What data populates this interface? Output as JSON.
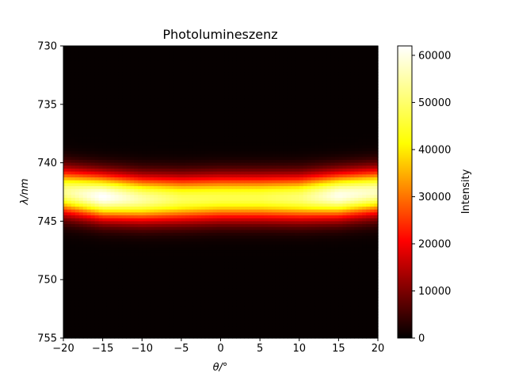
{
  "chart_data": {
    "type": "heatmap",
    "title": "Photolumineszenz",
    "xlabel": "θ/°",
    "ylabel": "λ/nm",
    "colorbar_label": "Intensity",
    "colormap": "hot",
    "x_range": [
      -20,
      20
    ],
    "y_range": [
      730,
      755
    ],
    "y_inverted": true,
    "x_ticks": [
      "−20",
      "−15",
      "−10",
      "−5",
      "0",
      "5",
      "10",
      "15",
      "20"
    ],
    "x_tick_values": [
      -20,
      -15,
      -10,
      -5,
      0,
      5,
      10,
      15,
      20
    ],
    "y_ticks": [
      "730",
      "735",
      "740",
      "745",
      "750",
      "755"
    ],
    "y_tick_values": [
      730,
      735,
      740,
      745,
      750,
      755
    ],
    "colorbar_ticks": [
      "0",
      "10000",
      "20000",
      "30000",
      "40000",
      "50000",
      "60000"
    ],
    "colorbar_tick_values": [
      0,
      10000,
      20000,
      30000,
      40000,
      50000,
      60000
    ],
    "colorbar_range": [
      0,
      62000
    ],
    "grid": false,
    "peak_wavelength_nm": [
      {
        "theta": -20,
        "lambda": 742.5
      },
      {
        "theta": -15,
        "lambda": 742.9
      },
      {
        "theta": -10,
        "lambda": 743.1
      },
      {
        "theta": -5,
        "lambda": 743.1
      },
      {
        "theta": 0,
        "lambda": 743.0
      },
      {
        "theta": 5,
        "lambda": 743.0
      },
      {
        "theta": 10,
        "lambda": 743.0
      },
      {
        "theta": 15,
        "lambda": 742.8
      },
      {
        "theta": 20,
        "lambda": 742.5
      }
    ],
    "peak_intensity": [
      {
        "theta": -20,
        "value": 52000
      },
      {
        "theta": -15,
        "value": 62000
      },
      {
        "theta": -10,
        "value": 54000
      },
      {
        "theta": -5,
        "value": 48000
      },
      {
        "theta": 0,
        "value": 47000
      },
      {
        "theta": 5,
        "value": 47000
      },
      {
        "theta": 10,
        "value": 50000
      },
      {
        "theta": 15,
        "value": 60000
      },
      {
        "theta": 20,
        "value": 56000
      }
    ],
    "band_fwhm_nm": 3.0
  }
}
